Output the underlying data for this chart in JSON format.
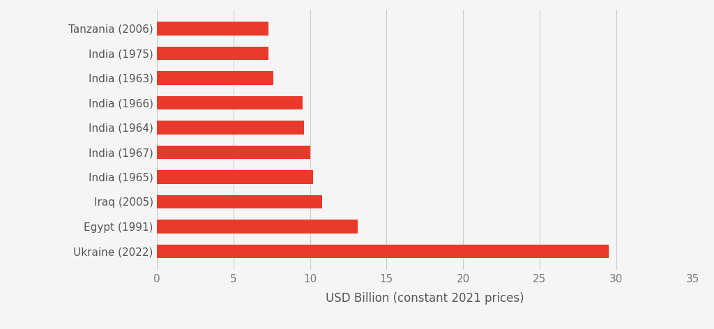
{
  "categories": [
    "Tanzania (2006)",
    "India (1975)",
    "India (1963)",
    "India (1966)",
    "India (1964)",
    "India (1967)",
    "India (1965)",
    "Iraq (2005)",
    "Egypt (1991)",
    "Ukraine (2022)"
  ],
  "values": [
    7.3,
    7.3,
    7.6,
    9.5,
    9.6,
    10.0,
    10.2,
    10.8,
    13.1,
    29.5
  ],
  "bar_color": "#e8392a",
  "xlabel": "USD Billion (constant 2021 prices)",
  "xlim": [
    0,
    35
  ],
  "xticks": [
    0,
    5,
    10,
    15,
    20,
    25,
    30,
    35
  ],
  "background_color": "#f5f5f5",
  "grid_color": "#cccccc",
  "bar_height": 0.55,
  "xlabel_fontsize": 12,
  "tick_fontsize": 11,
  "label_fontsize": 11,
  "label_color": "#555555",
  "tick_color": "#777777"
}
